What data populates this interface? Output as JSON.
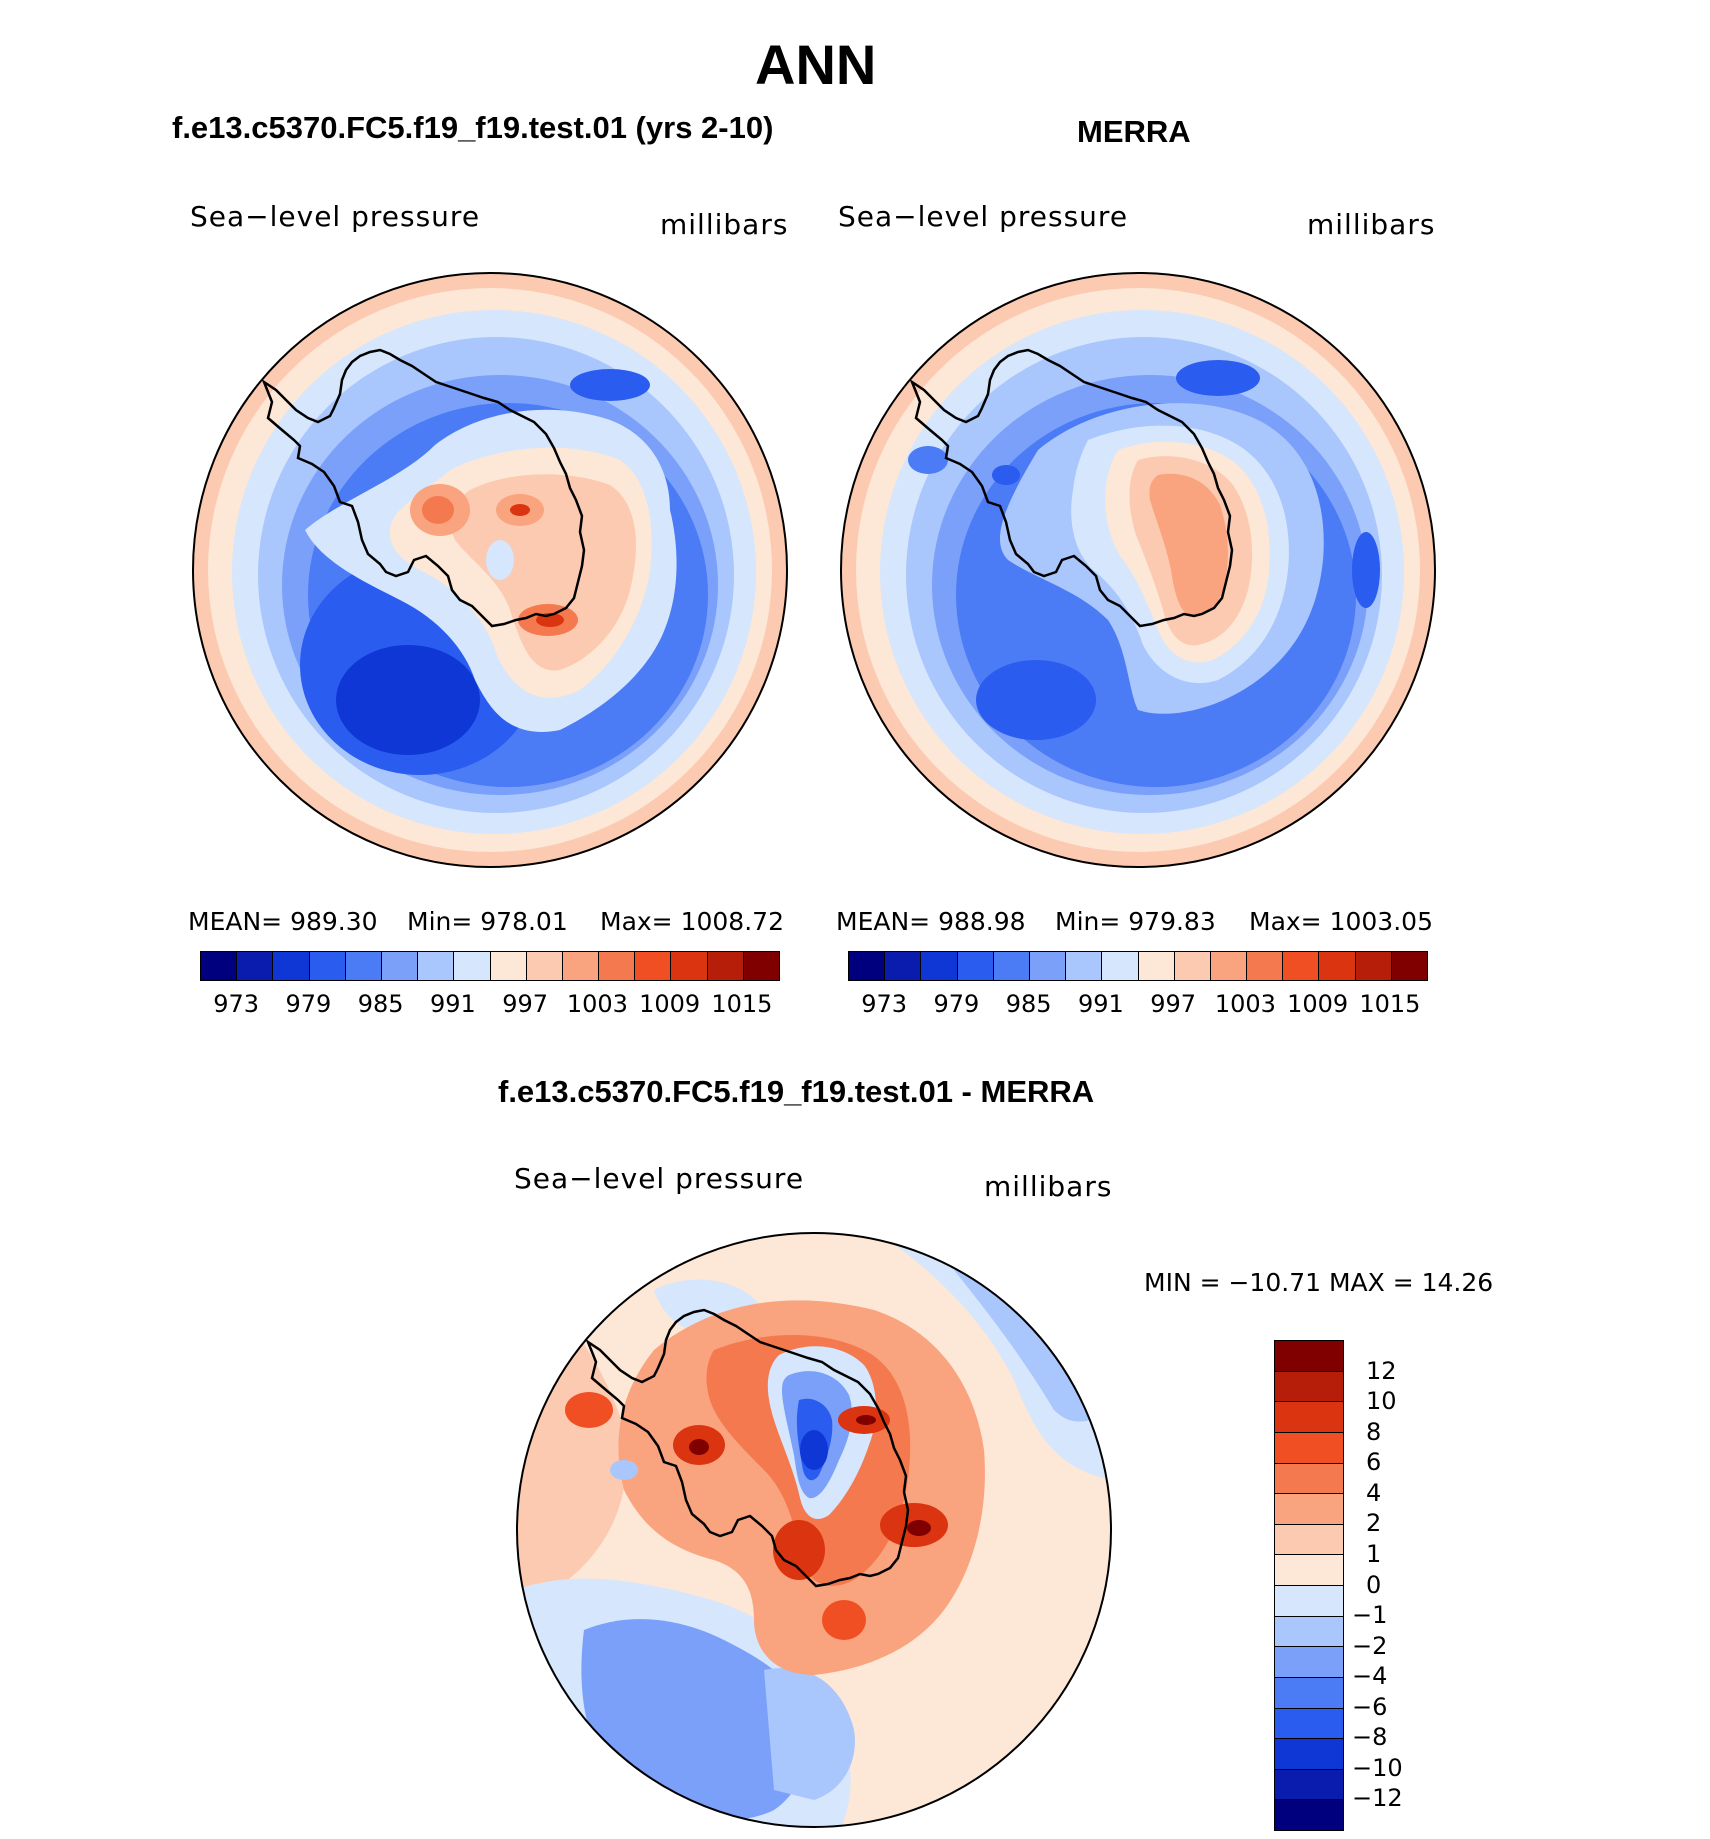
{
  "page": {
    "title": "ANN"
  },
  "panels": [
    {
      "id": "model",
      "title": "f.e13.c5370.FC5.f19_f19.test.01 (yrs 2-10)",
      "variable": "Sea−level pressure",
      "units": "millibars",
      "mean_label": "MEAN=",
      "mean_value": "989.30",
      "min_label": "Min=",
      "min_value": "978.01",
      "max_label": "Max=",
      "max_value": "1008.72",
      "colorbar_ticks": [
        "973",
        "979",
        "985",
        "991",
        "997",
        "1003",
        "1009",
        "1015"
      ]
    },
    {
      "id": "obs",
      "title": "MERRA",
      "variable": "Sea−level pressure",
      "units": "millibars",
      "mean_label": "MEAN=",
      "mean_value": "988.98",
      "min_label": "Min=",
      "min_value": "979.83",
      "max_label": "Max=",
      "max_value": "1003.05",
      "colorbar_ticks": [
        "973",
        "979",
        "985",
        "991",
        "997",
        "1003",
        "1009",
        "1015"
      ]
    },
    {
      "id": "diff",
      "title": "f.e13.c5370.FC5.f19_f19.test.01 - MERRA",
      "variable": "Sea−level pressure",
      "units": "millibars",
      "minmax_text": "MIN  =  −10.71  MAX  =    14.26",
      "colorbar_ticks": [
        "12",
        "10",
        "8",
        "6",
        "4",
        "2",
        "1",
        "0",
        "−1",
        "−2",
        "−4",
        "−6",
        "−8",
        "−10",
        "−12"
      ]
    }
  ],
  "colors": {
    "abs_scale": [
      "#00007f",
      "#0a1cae",
      "#0f37d6",
      "#2a5cf0",
      "#4b7bf5",
      "#7aa0fa",
      "#a9c6fd",
      "#d5e6fd",
      "#fde7d6",
      "#fccab0",
      "#f9a47e",
      "#f5794e",
      "#f04f24",
      "#db3410",
      "#b71e09",
      "#800000"
    ],
    "diff_scale": [
      "#800000",
      "#b71e09",
      "#db3410",
      "#f04f24",
      "#f5794e",
      "#f9a47e",
      "#fccab0",
      "#fde7d6",
      "#d5e6fd",
      "#a9c6fd",
      "#7aa0fa",
      "#4b7bf5",
      "#2a5cf0",
      "#0f37d6",
      "#0a1cae",
      "#00007f"
    ]
  }
}
